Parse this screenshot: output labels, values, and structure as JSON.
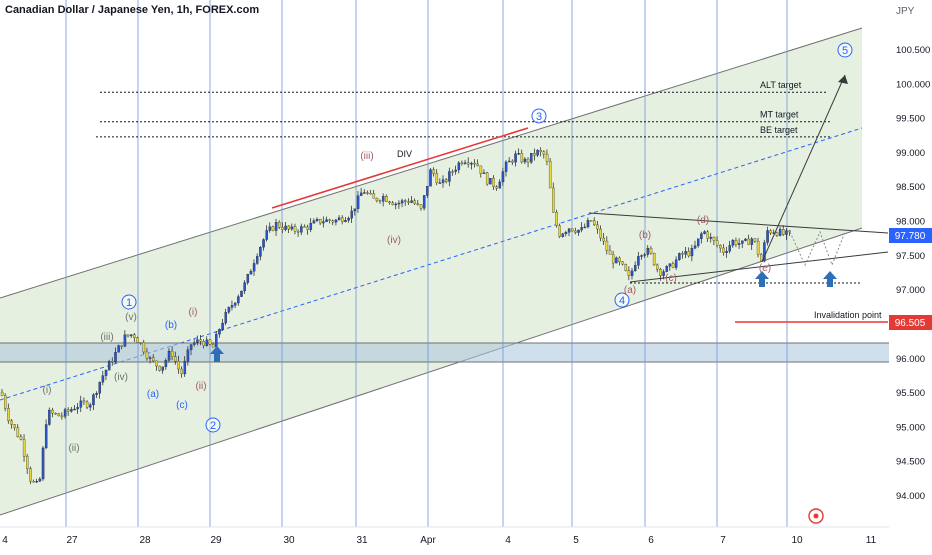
{
  "header": {
    "title": "Canadian Dollar / Japanese Yen, 1h, FOREX.com",
    "currency": "JPY"
  },
  "chart_data": {
    "type": "candlestick",
    "ylim": [
      93.85,
      101.05
    ],
    "y_ticks": [
      94.0,
      94.5,
      95.0,
      95.5,
      96.0,
      96.5,
      97.0,
      97.5,
      98.0,
      98.5,
      99.0,
      99.5,
      100.0,
      100.5
    ],
    "x_ticks": [
      "4",
      "27",
      "28",
      "29",
      "30",
      "31",
      "Apr",
      "4",
      "5",
      "6",
      "7",
      "10",
      "11"
    ],
    "last_price": "97.780",
    "invalidation_price": "96.505",
    "price_levels": [
      {
        "label": "ALT target",
        "value": 99.87
      },
      {
        "label": "MT target",
        "value": 99.44
      },
      {
        "label": "BE target",
        "value": 99.22
      },
      {
        "label": "Invalidation point",
        "value": 96.5
      }
    ],
    "annotations": {
      "div": "DIV",
      "wave_major": [
        "1",
        "2",
        "3",
        "4",
        "5"
      ],
      "wave_minor": [
        "(i)",
        "(ii)",
        "(iii)",
        "(iv)",
        "(v)",
        "(i)",
        "(ii)",
        "(iii)",
        "(iv)"
      ],
      "wave_corrective": [
        "(a)",
        "(b)",
        "(c)",
        "(a)",
        "(b)",
        "(c)",
        "(d)",
        "(e)"
      ]
    },
    "colors": {
      "up": "#2c54c9",
      "down": "#e8d63a",
      "channel_fill": "#dcebd7",
      "support_band": "#a9c4dd",
      "accent": "#2962ff",
      "invalidation": "#e53935"
    }
  }
}
